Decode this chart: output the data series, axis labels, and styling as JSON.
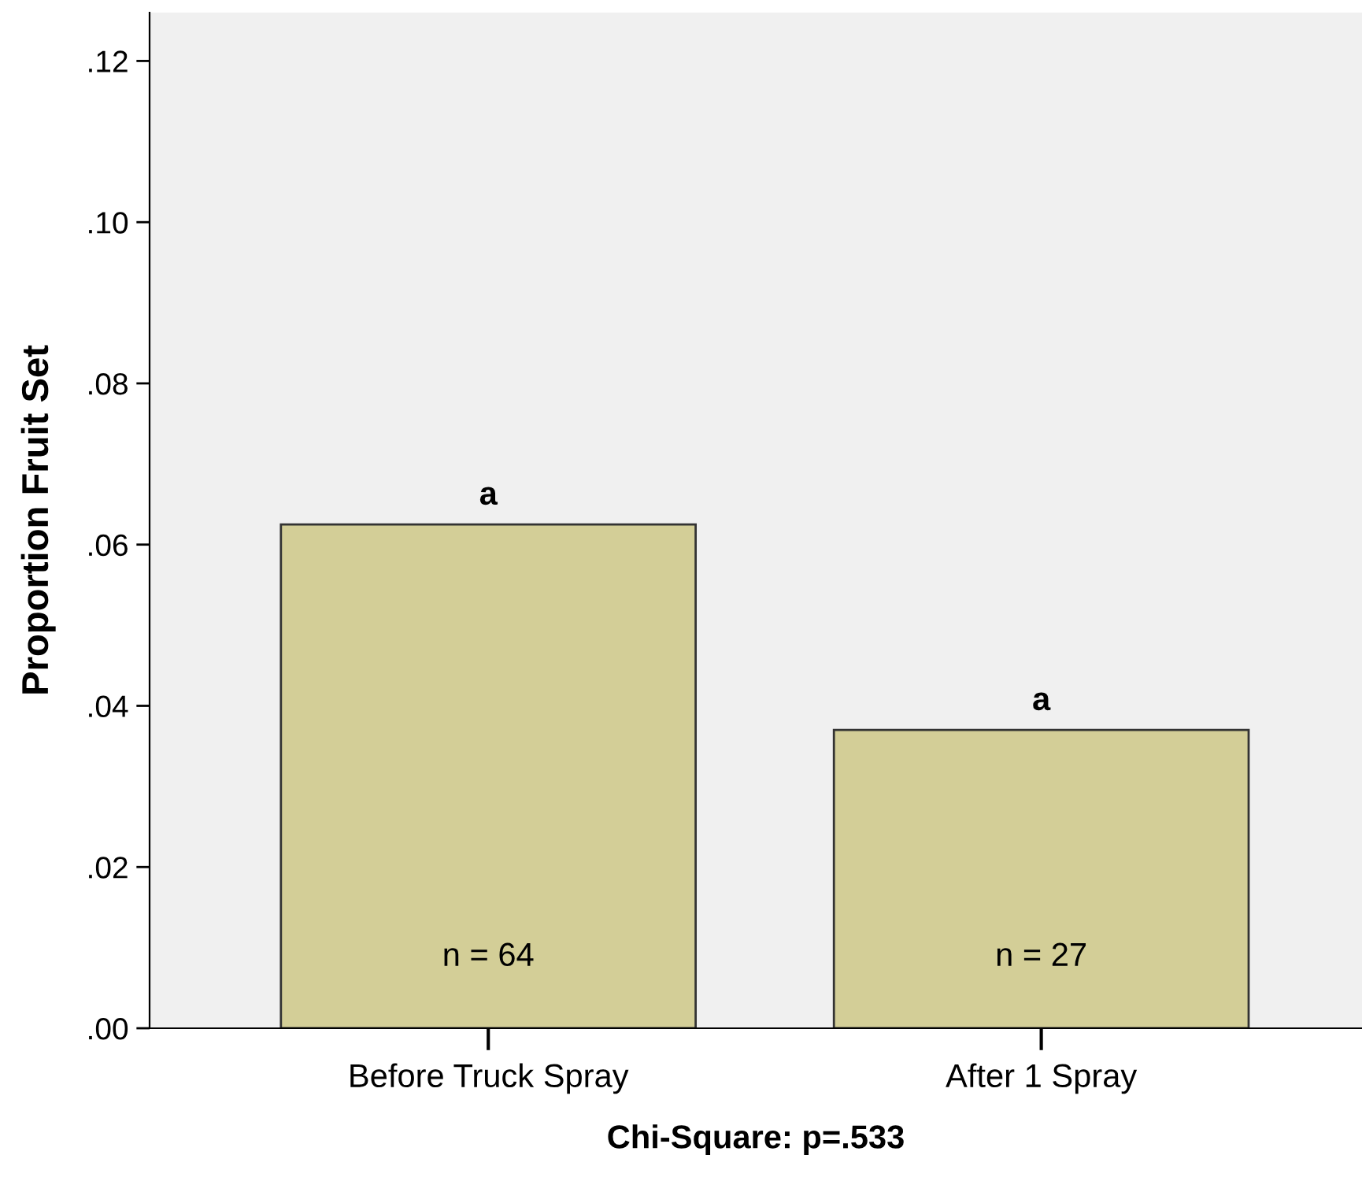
{
  "chart_data": {
    "type": "bar",
    "xlabel": "Chi-Square: p=.533",
    "ylabel": "Proportion Fruit Set",
    "categories": [
      "Before Truck Spray",
      "After 1 Spray"
    ],
    "values": [
      0.0625,
      0.037
    ],
    "color": "#d3ce97",
    "ylim": [
      0,
      0.126
    ],
    "yticks": [
      {
        "value": 0,
        "label": ".00"
      },
      {
        "value": 0.02,
        "label": ".02"
      },
      {
        "value": 0.04,
        "label": ".04"
      },
      {
        "value": 0.06,
        "label": ".06"
      },
      {
        "value": 0.08,
        "label": ".08"
      },
      {
        "value": 0.1,
        "label": ".10"
      },
      {
        "value": 0.12,
        "label": ".12"
      }
    ],
    "grid": false,
    "annotations": [
      {
        "text": "a",
        "x": "Before Truck Spray",
        "y": 0.0625
      },
      {
        "text": "a",
        "x": "After 1 Spray",
        "y": 0.037
      },
      "n = 64",
      "n = 27"
    ]
  }
}
